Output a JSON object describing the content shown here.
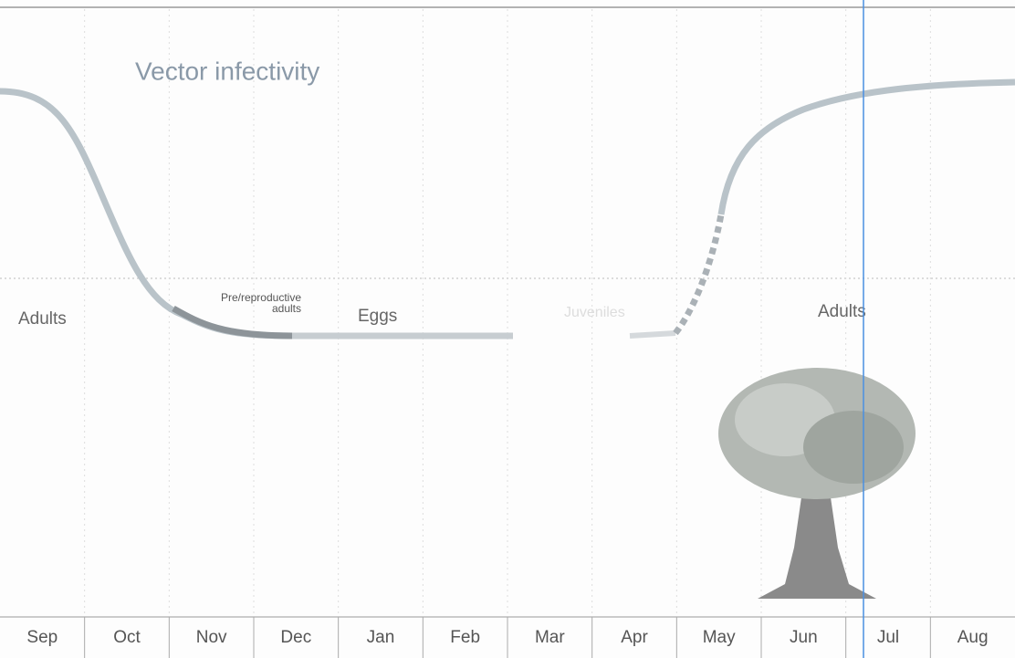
{
  "title": "Vector infectivity",
  "stages": [
    "Adults",
    "Pre/reproductive",
    "adults",
    "Eggs",
    "Juveniles",
    "Adults"
  ],
  "months": [
    "Sep",
    "Oct",
    "Nov",
    "Dec",
    "Jan",
    "Feb",
    "Mar",
    "Apr",
    "May",
    "Jun",
    "Jul",
    "Aug"
  ]
}
